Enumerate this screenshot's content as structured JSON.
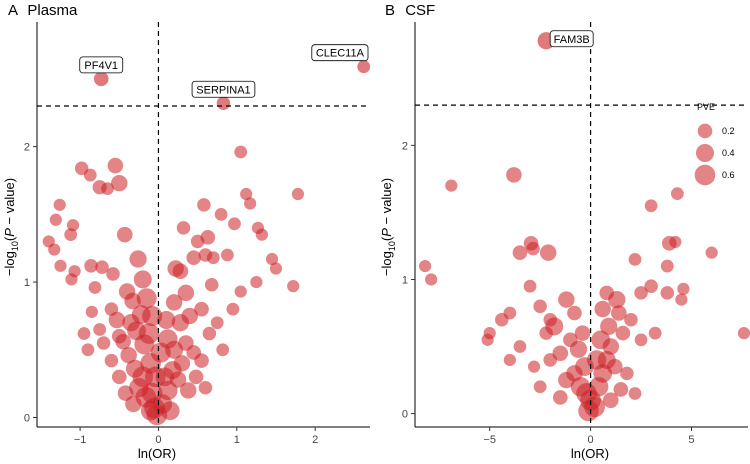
{
  "figure": {
    "point_color": "#cc1f24",
    "label_box_fill": "#ffffff"
  },
  "chart_data": [
    {
      "type": "scatter",
      "panel_tag": "A",
      "title": "Plasma",
      "xlabel": "ln(OR)",
      "ylabel": "−log10(P − value)",
      "xlim": [
        -1.55,
        2.7
      ],
      "ylim": [
        -0.07,
        2.92
      ],
      "xticks": [
        -1,
        0,
        1,
        2
      ],
      "xtick_labels": [
        "−1",
        "0",
        "1",
        "2"
      ],
      "yticks": [
        0,
        1,
        2
      ],
      "ytick_labels": [
        "0",
        "1",
        "2"
      ],
      "vline_x": 0,
      "hline_y": 2.3,
      "labeled_points": [
        {
          "label": "PF4V1",
          "x": -0.73,
          "y": 2.5,
          "pve": 0.2
        },
        {
          "label": "SERPINA1",
          "x": 0.83,
          "y": 2.32,
          "pve": 0.15
        },
        {
          "label": "CLEC11A",
          "x": 2.62,
          "y": 2.59,
          "pve": 0.12
        }
      ],
      "points": [
        {
          "x": -0.55,
          "y": 1.86,
          "pve": 0.25
        },
        {
          "x": -0.98,
          "y": 1.84,
          "pve": 0.15
        },
        {
          "x": -0.5,
          "y": 1.73,
          "pve": 0.3
        },
        {
          "x": -0.75,
          "y": 1.7,
          "pve": 0.18
        },
        {
          "x": -0.65,
          "y": 1.69,
          "pve": 0.12
        },
        {
          "x": -0.87,
          "y": 1.79,
          "pve": 0.12
        },
        {
          "x": -1.26,
          "y": 1.57,
          "pve": 0.1
        },
        {
          "x": -1.31,
          "y": 1.46,
          "pve": 0.1
        },
        {
          "x": -1.09,
          "y": 1.42,
          "pve": 0.1
        },
        {
          "x": -1.12,
          "y": 1.35,
          "pve": 0.12
        },
        {
          "x": -1.4,
          "y": 1.3,
          "pve": 0.1
        },
        {
          "x": -1.33,
          "y": 1.24,
          "pve": 0.1
        },
        {
          "x": -0.43,
          "y": 1.35,
          "pve": 0.25
        },
        {
          "x": -0.26,
          "y": 1.17,
          "pve": 0.35
        },
        {
          "x": -1.25,
          "y": 1.12,
          "pve": 0.1
        },
        {
          "x": -1.07,
          "y": 1.08,
          "pve": 0.1
        },
        {
          "x": -1.11,
          "y": 1.02,
          "pve": 0.1
        },
        {
          "x": -0.86,
          "y": 1.12,
          "pve": 0.15
        },
        {
          "x": -0.72,
          "y": 1.11,
          "pve": 0.15
        },
        {
          "x": -0.58,
          "y": 1.06,
          "pve": 0.15
        },
        {
          "x": -0.81,
          "y": 0.96,
          "pve": 0.12
        },
        {
          "x": -0.2,
          "y": 1.02,
          "pve": 0.4
        },
        {
          "x": -0.15,
          "y": 0.88,
          "pve": 0.55
        },
        {
          "x": -0.4,
          "y": 0.93,
          "pve": 0.3
        },
        {
          "x": -0.33,
          "y": 0.86,
          "pve": 0.3
        },
        {
          "x": -0.6,
          "y": 0.8,
          "pve": 0.15
        },
        {
          "x": -0.85,
          "y": 0.78,
          "pve": 0.1
        },
        {
          "x": -0.95,
          "y": 0.62,
          "pve": 0.12
        },
        {
          "x": -0.53,
          "y": 0.72,
          "pve": 0.3
        },
        {
          "x": -0.22,
          "y": 0.76,
          "pve": 0.45
        },
        {
          "x": -0.28,
          "y": 0.64,
          "pve": 0.45
        },
        {
          "x": -0.45,
          "y": 0.56,
          "pve": 0.25
        },
        {
          "x": -0.7,
          "y": 0.55,
          "pve": 0.15
        },
        {
          "x": -0.38,
          "y": 0.46,
          "pve": 0.3
        },
        {
          "x": -0.18,
          "y": 0.54,
          "pve": 0.55
        },
        {
          "x": -0.12,
          "y": 0.62,
          "pve": 0.6
        },
        {
          "x": -0.3,
          "y": 0.36,
          "pve": 0.4
        },
        {
          "x": -0.2,
          "y": 0.3,
          "pve": 0.6
        },
        {
          "x": -0.1,
          "y": 0.4,
          "pve": 0.6
        },
        {
          "x": -0.25,
          "y": 0.22,
          "pve": 0.5
        },
        {
          "x": -0.16,
          "y": 0.15,
          "pve": 0.6
        },
        {
          "x": -0.08,
          "y": 0.18,
          "pve": 0.6
        },
        {
          "x": -0.05,
          "y": 0.07,
          "pve": 0.6
        },
        {
          "x": -0.1,
          "y": 0.05,
          "pve": 0.5
        },
        {
          "x": -0.02,
          "y": 0.02,
          "pve": 0.6
        },
        {
          "x": -0.5,
          "y": 0.3,
          "pve": 0.2
        },
        {
          "x": -0.6,
          "y": 0.42,
          "pve": 0.15
        },
        {
          "x": -0.42,
          "y": 0.18,
          "pve": 0.25
        },
        {
          "x": -0.32,
          "y": 0.1,
          "pve": 0.3
        },
        {
          "x": 0.05,
          "y": 0.1,
          "pve": 0.5
        },
        {
          "x": 0.12,
          "y": 0.2,
          "pve": 0.5
        },
        {
          "x": 0.08,
          "y": 0.3,
          "pve": 0.45
        },
        {
          "x": 0.18,
          "y": 0.35,
          "pve": 0.4
        },
        {
          "x": 0.25,
          "y": 0.28,
          "pve": 0.3
        },
        {
          "x": 0.3,
          "y": 0.4,
          "pve": 0.3
        },
        {
          "x": 0.2,
          "y": 0.5,
          "pve": 0.4
        },
        {
          "x": 0.12,
          "y": 0.58,
          "pve": 0.5
        },
        {
          "x": 0.35,
          "y": 0.55,
          "pve": 0.25
        },
        {
          "x": 0.45,
          "y": 0.48,
          "pve": 0.2
        },
        {
          "x": 0.28,
          "y": 0.7,
          "pve": 0.35
        },
        {
          "x": 0.4,
          "y": 0.75,
          "pve": 0.3
        },
        {
          "x": 0.2,
          "y": 0.85,
          "pve": 0.3
        },
        {
          "x": 0.35,
          "y": 0.92,
          "pve": 0.3
        },
        {
          "x": 0.55,
          "y": 0.8,
          "pve": 0.2
        },
        {
          "x": 0.65,
          "y": 0.62,
          "pve": 0.15
        },
        {
          "x": 0.75,
          "y": 0.7,
          "pve": 0.12
        },
        {
          "x": 0.28,
          "y": 1.08,
          "pve": 0.25
        },
        {
          "x": 0.22,
          "y": 1.1,
          "pve": 0.3
        },
        {
          "x": 0.45,
          "y": 1.18,
          "pve": 0.2
        },
        {
          "x": 0.6,
          "y": 1.2,
          "pve": 0.15
        },
        {
          "x": 0.7,
          "y": 1.18,
          "pve": 0.12
        },
        {
          "x": 0.5,
          "y": 1.3,
          "pve": 0.15
        },
        {
          "x": 0.63,
          "y": 1.33,
          "pve": 0.2
        },
        {
          "x": 0.58,
          "y": 1.57,
          "pve": 0.15
        },
        {
          "x": 0.8,
          "y": 1.5,
          "pve": 0.12
        },
        {
          "x": 0.97,
          "y": 1.43,
          "pve": 0.12
        },
        {
          "x": 0.32,
          "y": 1.4,
          "pve": 0.15
        },
        {
          "x": 0.88,
          "y": 1.2,
          "pve": 0.12
        },
        {
          "x": 1.05,
          "y": 1.96,
          "pve": 0.12
        },
        {
          "x": 1.12,
          "y": 1.65,
          "pve": 0.1
        },
        {
          "x": 1.17,
          "y": 1.58,
          "pve": 0.1
        },
        {
          "x": 1.32,
          "y": 1.35,
          "pve": 0.1
        },
        {
          "x": 1.27,
          "y": 1.4,
          "pve": 0.1
        },
        {
          "x": 1.45,
          "y": 1.17,
          "pve": 0.1
        },
        {
          "x": 1.78,
          "y": 1.65,
          "pve": 0.1
        },
        {
          "x": 1.72,
          "y": 0.97,
          "pve": 0.1
        },
        {
          "x": 1.5,
          "y": 1.1,
          "pve": 0.1
        },
        {
          "x": 1.25,
          "y": 1.0,
          "pve": 0.1
        },
        {
          "x": 1.05,
          "y": 0.93,
          "pve": 0.1
        },
        {
          "x": 0.95,
          "y": 0.8,
          "pve": 0.12
        },
        {
          "x": 0.68,
          "y": 0.98,
          "pve": 0.15
        },
        {
          "x": 0.55,
          "y": 0.42,
          "pve": 0.2
        },
        {
          "x": 0.38,
          "y": 0.2,
          "pve": 0.3
        },
        {
          "x": 0.15,
          "y": 0.05,
          "pve": 0.45
        },
        {
          "x": 0.6,
          "y": 0.22,
          "pve": 0.15
        },
        {
          "x": 0.48,
          "y": 0.3,
          "pve": 0.2
        },
        {
          "x": 0.82,
          "y": 0.5,
          "pve": 0.12
        },
        {
          "x": -0.08,
          "y": 0.75,
          "pve": 0.55
        },
        {
          "x": 0.03,
          "y": 0.48,
          "pve": 0.55
        },
        {
          "x": -0.35,
          "y": 0.7,
          "pve": 0.35
        },
        {
          "x": -0.5,
          "y": 0.6,
          "pve": 0.2
        },
        {
          "x": -0.75,
          "y": 0.65,
          "pve": 0.12
        },
        {
          "x": -0.9,
          "y": 0.5,
          "pve": 0.12
        },
        {
          "x": 0.1,
          "y": 0.72,
          "pve": 0.4
        },
        {
          "x": -0.04,
          "y": 0.3,
          "pve": 0.6
        }
      ],
      "legend": null
    },
    {
      "type": "scatter",
      "panel_tag": "B",
      "title": "CSF",
      "xlabel": "ln(OR)",
      "ylabel": "−log10(P − value)",
      "xlim": [
        -8.7,
        7.8
      ],
      "ylim": [
        -0.1,
        2.92
      ],
      "xticks": [
        -5,
        0,
        5
      ],
      "xtick_labels": [
        "−5",
        "0",
        "5"
      ],
      "yticks": [
        0,
        1,
        2
      ],
      "ytick_labels": [
        "0",
        "1",
        "2"
      ],
      "vline_x": 0,
      "hline_y": 2.3,
      "labeled_points": [
        {
          "label": "FAM3B",
          "x": -2.2,
          "y": 2.78,
          "pve": 0.35
        }
      ],
      "points": [
        {
          "x": -3.8,
          "y": 1.78,
          "pve": 0.25
        },
        {
          "x": -6.9,
          "y": 1.7,
          "pve": 0.1
        },
        {
          "x": -8.2,
          "y": 1.1,
          "pve": 0.1
        },
        {
          "x": -7.9,
          "y": 1.0,
          "pve": 0.1
        },
        {
          "x": -3.5,
          "y": 1.2,
          "pve": 0.2
        },
        {
          "x": -2.95,
          "y": 1.27,
          "pve": 0.2
        },
        {
          "x": -2.85,
          "y": 1.23,
          "pve": 0.15
        },
        {
          "x": -2.1,
          "y": 1.2,
          "pve": 0.3
        },
        {
          "x": -5.0,
          "y": 0.6,
          "pve": 0.1
        },
        {
          "x": -5.1,
          "y": 0.55,
          "pve": 0.1
        },
        {
          "x": -4.4,
          "y": 0.7,
          "pve": 0.15
        },
        {
          "x": -4.0,
          "y": 0.75,
          "pve": 0.12
        },
        {
          "x": -3.0,
          "y": 0.95,
          "pve": 0.12
        },
        {
          "x": -2.5,
          "y": 0.8,
          "pve": 0.15
        },
        {
          "x": -2.0,
          "y": 0.7,
          "pve": 0.15
        },
        {
          "x": -1.2,
          "y": 0.85,
          "pve": 0.3
        },
        {
          "x": -0.8,
          "y": 0.75,
          "pve": 0.2
        },
        {
          "x": -1.8,
          "y": 0.65,
          "pve": 0.4
        },
        {
          "x": -1.0,
          "y": 0.55,
          "pve": 0.2
        },
        {
          "x": -2.2,
          "y": 0.6,
          "pve": 0.15
        },
        {
          "x": -3.5,
          "y": 0.5,
          "pve": 0.12
        },
        {
          "x": -4.0,
          "y": 0.4,
          "pve": 0.1
        },
        {
          "x": -2.8,
          "y": 0.35,
          "pve": 0.1
        },
        {
          "x": -2.0,
          "y": 0.4,
          "pve": 0.15
        },
        {
          "x": -1.5,
          "y": 0.45,
          "pve": 0.25
        },
        {
          "x": -0.6,
          "y": 0.48,
          "pve": 0.35
        },
        {
          "x": -0.3,
          "y": 0.35,
          "pve": 0.45
        },
        {
          "x": -0.8,
          "y": 0.3,
          "pve": 0.3
        },
        {
          "x": -1.2,
          "y": 0.25,
          "pve": 0.3
        },
        {
          "x": -0.5,
          "y": 0.2,
          "pve": 0.5
        },
        {
          "x": -0.2,
          "y": 0.15,
          "pve": 0.6
        },
        {
          "x": 0.0,
          "y": 0.1,
          "pve": 0.6
        },
        {
          "x": 0.2,
          "y": 0.05,
          "pve": 0.6
        },
        {
          "x": -0.1,
          "y": 0.02,
          "pve": 0.6
        },
        {
          "x": 0.4,
          "y": 0.2,
          "pve": 0.5
        },
        {
          "x": 0.6,
          "y": 0.3,
          "pve": 0.45
        },
        {
          "x": 0.8,
          "y": 0.4,
          "pve": 0.4
        },
        {
          "x": 0.5,
          "y": 0.55,
          "pve": 0.45
        },
        {
          "x": 0.6,
          "y": 0.78,
          "pve": 0.3
        },
        {
          "x": 1.3,
          "y": 0.85,
          "pve": 0.35
        },
        {
          "x": 0.8,
          "y": 0.9,
          "pve": 0.2
        },
        {
          "x": 1.0,
          "y": 0.5,
          "pve": 0.3
        },
        {
          "x": 1.2,
          "y": 0.35,
          "pve": 0.25
        },
        {
          "x": 1.6,
          "y": 0.6,
          "pve": 0.2
        },
        {
          "x": 2.0,
          "y": 0.7,
          "pve": 0.15
        },
        {
          "x": 1.8,
          "y": 0.3,
          "pve": 0.15
        },
        {
          "x": 2.5,
          "y": 0.55,
          "pve": 0.12
        },
        {
          "x": 2.5,
          "y": 0.9,
          "pve": 0.15
        },
        {
          "x": 3.0,
          "y": 0.95,
          "pve": 0.15
        },
        {
          "x": 3.2,
          "y": 0.6,
          "pve": 0.12
        },
        {
          "x": 2.2,
          "y": 1.15,
          "pve": 0.12
        },
        {
          "x": 3.0,
          "y": 1.55,
          "pve": 0.12
        },
        {
          "x": 3.9,
          "y": 1.27,
          "pve": 0.2
        },
        {
          "x": 4.2,
          "y": 1.28,
          "pve": 0.1
        },
        {
          "x": 4.3,
          "y": 1.64,
          "pve": 0.12
        },
        {
          "x": 3.8,
          "y": 1.1,
          "pve": 0.12
        },
        {
          "x": 3.8,
          "y": 0.9,
          "pve": 0.15
        },
        {
          "x": 4.5,
          "y": 0.85,
          "pve": 0.1
        },
        {
          "x": 4.6,
          "y": 0.93,
          "pve": 0.1
        },
        {
          "x": 6.0,
          "y": 1.2,
          "pve": 0.1
        },
        {
          "x": 7.6,
          "y": 0.6,
          "pve": 0.1
        },
        {
          "x": 2.2,
          "y": 0.15,
          "pve": 0.12
        },
        {
          "x": 1.0,
          "y": 0.1,
          "pve": 0.25
        },
        {
          "x": 1.5,
          "y": 0.18,
          "pve": 0.2
        },
        {
          "x": -1.5,
          "y": 0.12,
          "pve": 0.2
        },
        {
          "x": -2.5,
          "y": 0.2,
          "pve": 0.12
        },
        {
          "x": 0.3,
          "y": 0.4,
          "pve": 0.5
        },
        {
          "x": -0.4,
          "y": 0.6,
          "pve": 0.25
        },
        {
          "x": 0.9,
          "y": 0.65,
          "pve": 0.35
        },
        {
          "x": 1.4,
          "y": 0.75,
          "pve": 0.25
        }
      ],
      "legend": {
        "title": "PVE",
        "entries": [
          {
            "label": "0.2",
            "pve": 0.2
          },
          {
            "label": "0.4",
            "pve": 0.4
          },
          {
            "label": "0.6",
            "pve": 0.6
          }
        ]
      }
    }
  ]
}
